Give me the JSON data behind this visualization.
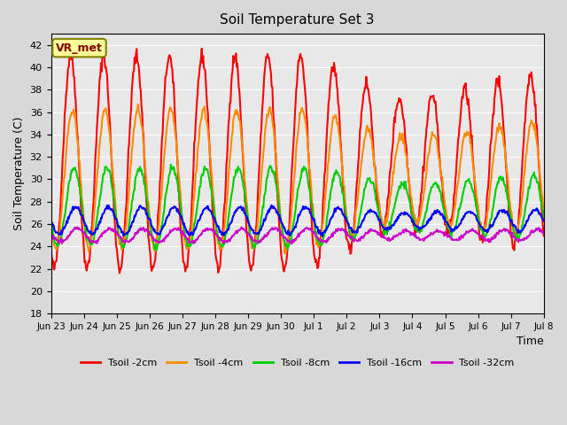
{
  "title": "Soil Temperature Set 3",
  "xlabel": "Time",
  "ylabel": "Soil Temperature (C)",
  "ylim": [
    18,
    43
  ],
  "yticks": [
    18,
    20,
    22,
    24,
    26,
    28,
    30,
    32,
    34,
    36,
    38,
    40,
    42
  ],
  "background_color": "#d8d8d8",
  "plot_bg_color": "#e8e8e8",
  "annotation_text": "VR_met",
  "annotation_box_color": "#ffff99",
  "annotation_border_color": "#808000",
  "lines": [
    {
      "label": "Tsoil -2cm",
      "color": "#ff0000",
      "lw": 1.5
    },
    {
      "label": "Tsoil -4cm",
      "color": "#ff8c00",
      "lw": 1.5
    },
    {
      "label": "Tsoil -8cm",
      "color": "#00cc00",
      "lw": 1.5
    },
    {
      "label": "Tsoil -16cm",
      "color": "#0000ff",
      "lw": 1.5
    },
    {
      "label": "Tsoil -32cm",
      "color": "#cc00cc",
      "lw": 1.5
    }
  ],
  "n_days": 15,
  "x_tick_positions": [
    0,
    1,
    2,
    3,
    4,
    5,
    6,
    7,
    8,
    9,
    10,
    11,
    12,
    13,
    14,
    15
  ],
  "x_tick_labels": [
    "Jun 23",
    "Jun 24",
    "Jun 25",
    "Jun 26",
    "Jun 27",
    "Jun 28",
    "Jun 29",
    "Jun 30",
    "Jul 1",
    "Jul 2",
    "Jul 3",
    "Jul 4",
    "Jul 5",
    "Jul 6",
    "Jul 7",
    "Jul 8"
  ],
  "grid_color": "#ffffff",
  "grid_alpha": 1.0
}
